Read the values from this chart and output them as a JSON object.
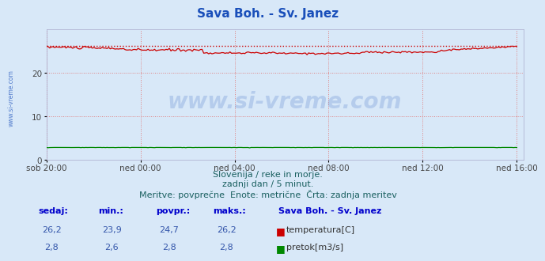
{
  "title": "Sava Boh. - Sv. Janez",
  "title_color": "#1a4fba",
  "title_fontsize": 11,
  "bg_color": "#d8e8f8",
  "plot_bg_color": "#d8e8f8",
  "grid_color": "#e08080",
  "x_tick_labels": [
    "sob 20:00",
    "ned 00:00",
    "ned 04:00",
    "ned 08:00",
    "ned 12:00",
    "ned 16:00"
  ],
  "x_tick_positions": [
    0,
    72,
    144,
    216,
    288,
    360
  ],
  "y_ticks": [
    0,
    10,
    20
  ],
  "ylim": [
    0,
    30
  ],
  "xlim": [
    0,
    365
  ],
  "temp_color": "#cc0000",
  "flow_color": "#008800",
  "temp_min": 23.9,
  "temp_max": 26.2,
  "temp_avg": 24.7,
  "temp_current": 26.2,
  "flow_min": 2.6,
  "flow_max": 2.8,
  "flow_avg": 2.8,
  "flow_current": 2.8,
  "watermark_color": "#1a4fba",
  "subtitle1": "Slovenija / reke in morje.",
  "subtitle2": "zadnji dan / 5 minut.",
  "subtitle3": "Meritve: povprečne  Enote: metrične  Črta: zadnja meritev",
  "subtitle_color": "#1a6060",
  "subtitle_fontsize": 8,
  "table_header_color": "#0000cc",
  "table_value_color": "#3355aa",
  "table_headers": [
    "sedaj:",
    "min.:",
    "povpr.:",
    "maks.:"
  ],
  "station_label": "Sava Boh. - Sv. Janez",
  "legend_temp": "temperatura[C]",
  "legend_flow": "pretok[m3/s]",
  "n_points": 288
}
